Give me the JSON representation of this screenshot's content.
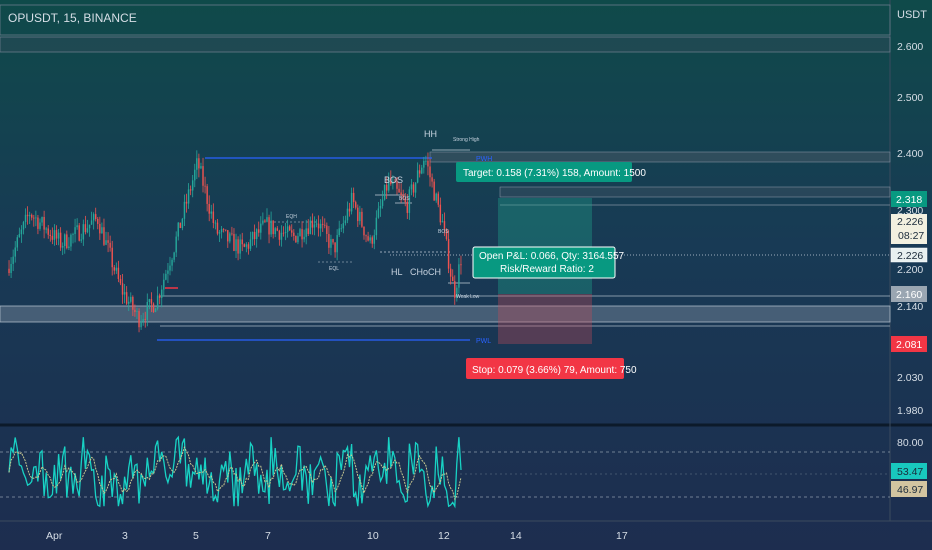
{
  "header": {
    "title": "OPUSDT, 15, BINANCE",
    "currency": "USDT"
  },
  "annotations": {
    "hh": "HH",
    "strong_high": "Strong High",
    "bos_1": "BOS",
    "bos_2": "BOS",
    "bos_3": "BOS",
    "eqh": "EQH",
    "eql": "EQL",
    "hl": "HL",
    "choch": "CHoCH",
    "weak_low": "Weak Low",
    "pwh": "PWH",
    "pwl": "PWL"
  },
  "position": {
    "target_label": "Target: 0.158 (7.31%) 158, Amount: 1500",
    "pnl_line1": "Open P&L: 0.066, Qty: 3164.557",
    "pnl_line2": "Risk/Reward Ratio: 2",
    "stop_label": "Stop: 0.079 (3.66%) 79, Amount: 750",
    "entry": 2.16,
    "target": 2.318,
    "stop": 2.081
  },
  "price_axis": {
    "ticks": [
      "2.600",
      "2.500",
      "2.400",
      "2.300",
      "2.200",
      "2.140",
      "2.030",
      "1.980"
    ],
    "badge_target": "2.318",
    "badge_last": "2.226",
    "badge_countdown": "08:27",
    "badge_last2": "2.226",
    "badge_entry": "2.160",
    "badge_stop": "2.081"
  },
  "rsi_axis": {
    "top": "80.00",
    "value": "53.47",
    "ma": "46.97"
  },
  "time_axis": [
    "Apr",
    "3",
    "5",
    "7",
    "10",
    "12",
    "14",
    "17"
  ],
  "colors": {
    "up": "#26a69a",
    "down": "#ef5350",
    "target_green": "#089981",
    "stop_red": "#f23645",
    "rsi_line": "#18d2c4",
    "rsi_ma": "#c8c890",
    "structure_blue": "#2962ff"
  },
  "chart_data": {
    "type": "candlestick",
    "symbol": "OPUSDT",
    "interval": "15",
    "exchange": "BINANCE",
    "ylim": [
      1.96,
      2.64
    ],
    "last_price": 2.226,
    "levels": [
      {
        "name": "PWH",
        "value": 2.397
      },
      {
        "name": "PWL",
        "value": 2.107
      },
      {
        "name": "Target",
        "value": 2.318
      },
      {
        "name": "Entry",
        "value": 2.16
      },
      {
        "name": "Stop",
        "value": 2.081
      }
    ],
    "swings": [
      {
        "label": "start",
        "x": 0.0,
        "price": 2.21
      },
      {
        "x": 0.05,
        "price": 2.3
      },
      {
        "x": 0.12,
        "price": 2.25
      },
      {
        "x": 0.2,
        "price": 2.29
      },
      {
        "x": 0.25,
        "price": 2.18
      },
      {
        "x": 0.29,
        "price": 2.13
      },
      {
        "x": 0.33,
        "price": 2.16
      },
      {
        "x": 0.37,
        "price": 2.25
      },
      {
        "x": 0.42,
        "price": 2.38
      },
      {
        "x": 0.46,
        "price": 2.27
      },
      {
        "x": 0.52,
        "price": 2.24
      },
      {
        "x": 0.57,
        "price": 2.28
      },
      {
        "x": 0.63,
        "price": 2.26
      },
      {
        "x": 0.68,
        "price": 2.29
      },
      {
        "x": 0.72,
        "price": 2.24
      },
      {
        "x": 0.76,
        "price": 2.32
      },
      {
        "x": 0.8,
        "price": 2.25
      },
      {
        "x": 0.84,
        "price": 2.35
      },
      {
        "x": 0.88,
        "price": 2.31
      },
      {
        "x": 0.92,
        "price": 2.39
      },
      {
        "x": 0.96,
        "price": 2.28
      },
      {
        "x": 0.985,
        "price": 2.17
      },
      {
        "x": 1.0,
        "price": 2.226
      }
    ],
    "rsi": {
      "upper": 70,
      "lower": 30,
      "top_tick": 80,
      "value": 53.47,
      "ma": 46.97
    }
  }
}
